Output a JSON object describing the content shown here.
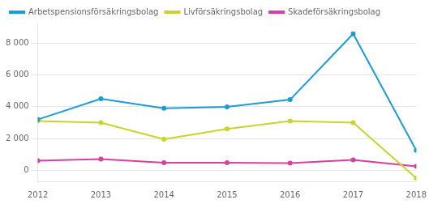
{
  "chart_data": {
    "type": "line",
    "x": [
      2012,
      2013,
      2014,
      2015,
      2016,
      2017,
      2018
    ],
    "series": [
      {
        "name": "Arbetspensionsförsäkringsbolag",
        "color": "#1a9cd8",
        "values": [
          3200,
          4500,
          3900,
          4000,
          4450,
          8600,
          1250
        ]
      },
      {
        "name": "Livförsäkringsbolag",
        "color": "#c8d42a",
        "values": [
          3100,
          3000,
          1950,
          2600,
          3100,
          3000,
          -500
        ]
      },
      {
        "name": "Skadeförsäkringsbolag",
        "color": "#d93f9e",
        "values": [
          600,
          700,
          480,
          470,
          450,
          650,
          250
        ]
      }
    ],
    "xlim": [
      2012,
      2018
    ],
    "xticks": [
      2012,
      2013,
      2014,
      2015,
      2016,
      2017,
      2018
    ],
    "ylim": [
      -700,
      9200
    ],
    "yticks": [
      0,
      {
        "value": 2000,
        "label": "2 000"
      },
      {
        "value": 4000,
        "label": "4 000"
      },
      {
        "value": 6000,
        "label": "6 000"
      },
      {
        "value": 8000,
        "label": "8 000"
      }
    ],
    "grid": "y",
    "legend": "upper left"
  }
}
